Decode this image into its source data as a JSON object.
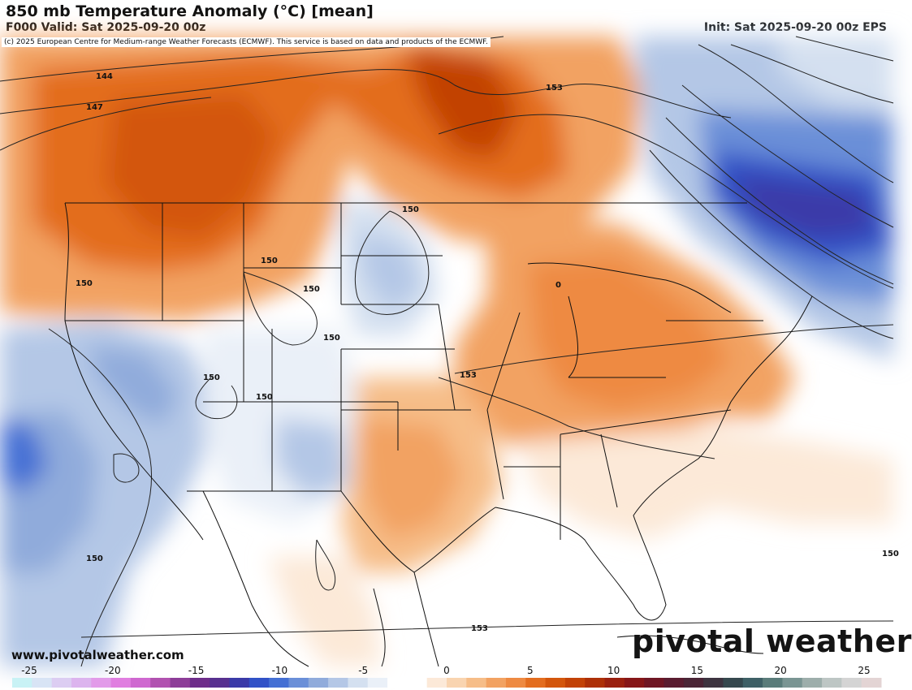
{
  "header": {
    "title": "850 mb Temperature Anomaly (°C) [mean]",
    "valid": "F000 Valid: Sat 2025-09-20 00z",
    "init": "Init: Sat 2025-09-20 00z EPS"
  },
  "copyright": "(c) 2025 European Centre for Medium-range Weather Forecasts (ECMWF). This service is based on data and products of the ECMWF.",
  "footer": {
    "url": "www.pivotalweather.com",
    "brand": "pivotal weather"
  },
  "contour_labels": [
    "144",
    "147",
    "153",
    "150",
    "150",
    "150",
    "150",
    "150",
    "150",
    "150",
    "150",
    "153",
    "150",
    "153",
    "0"
  ],
  "colorbar": {
    "tick_labels": [
      "-25",
      "-20",
      "-15",
      "-10",
      "-5",
      "0",
      "5",
      "10",
      "15",
      "20",
      "25"
    ],
    "colors": [
      "#c8f2f5",
      "#d8e4f5",
      "#dccdf2",
      "#dcb4ee",
      "#e29be9",
      "#e07ee0",
      "#cf68d0",
      "#b152b0",
      "#8d3d98",
      "#6e2d8a",
      "#57308f",
      "#3a3aa8",
      "#3152c7",
      "#4470d4",
      "#6a8fd8",
      "#90abdb",
      "#b4c7e6",
      "#d4e0f0",
      "#eaf0f8",
      "#ffffff",
      "#ffffff",
      "#fce9d8",
      "#f9d4b0",
      "#f6bd88",
      "#f2a262",
      "#ee8a42",
      "#e36d1f",
      "#d3560c",
      "#c24206",
      "#ad3007",
      "#9a200f",
      "#861618",
      "#6f1624",
      "#5a1c30",
      "#4a2536",
      "#3d3440",
      "#35484e",
      "#3e6066",
      "#5a7c7a",
      "#7a9593",
      "#9daeab",
      "#bdc6c4",
      "#d4d4d4",
      "#e3d4d4"
    ]
  },
  "colors": {
    "warm_light": "#f9d4b0",
    "warm_mid": "#ee8a42",
    "warm_dark": "#d3560c",
    "cool_light": "#d4e0f0",
    "cool_mid": "#90abdb",
    "cool_dark": "#3a3aa8"
  }
}
